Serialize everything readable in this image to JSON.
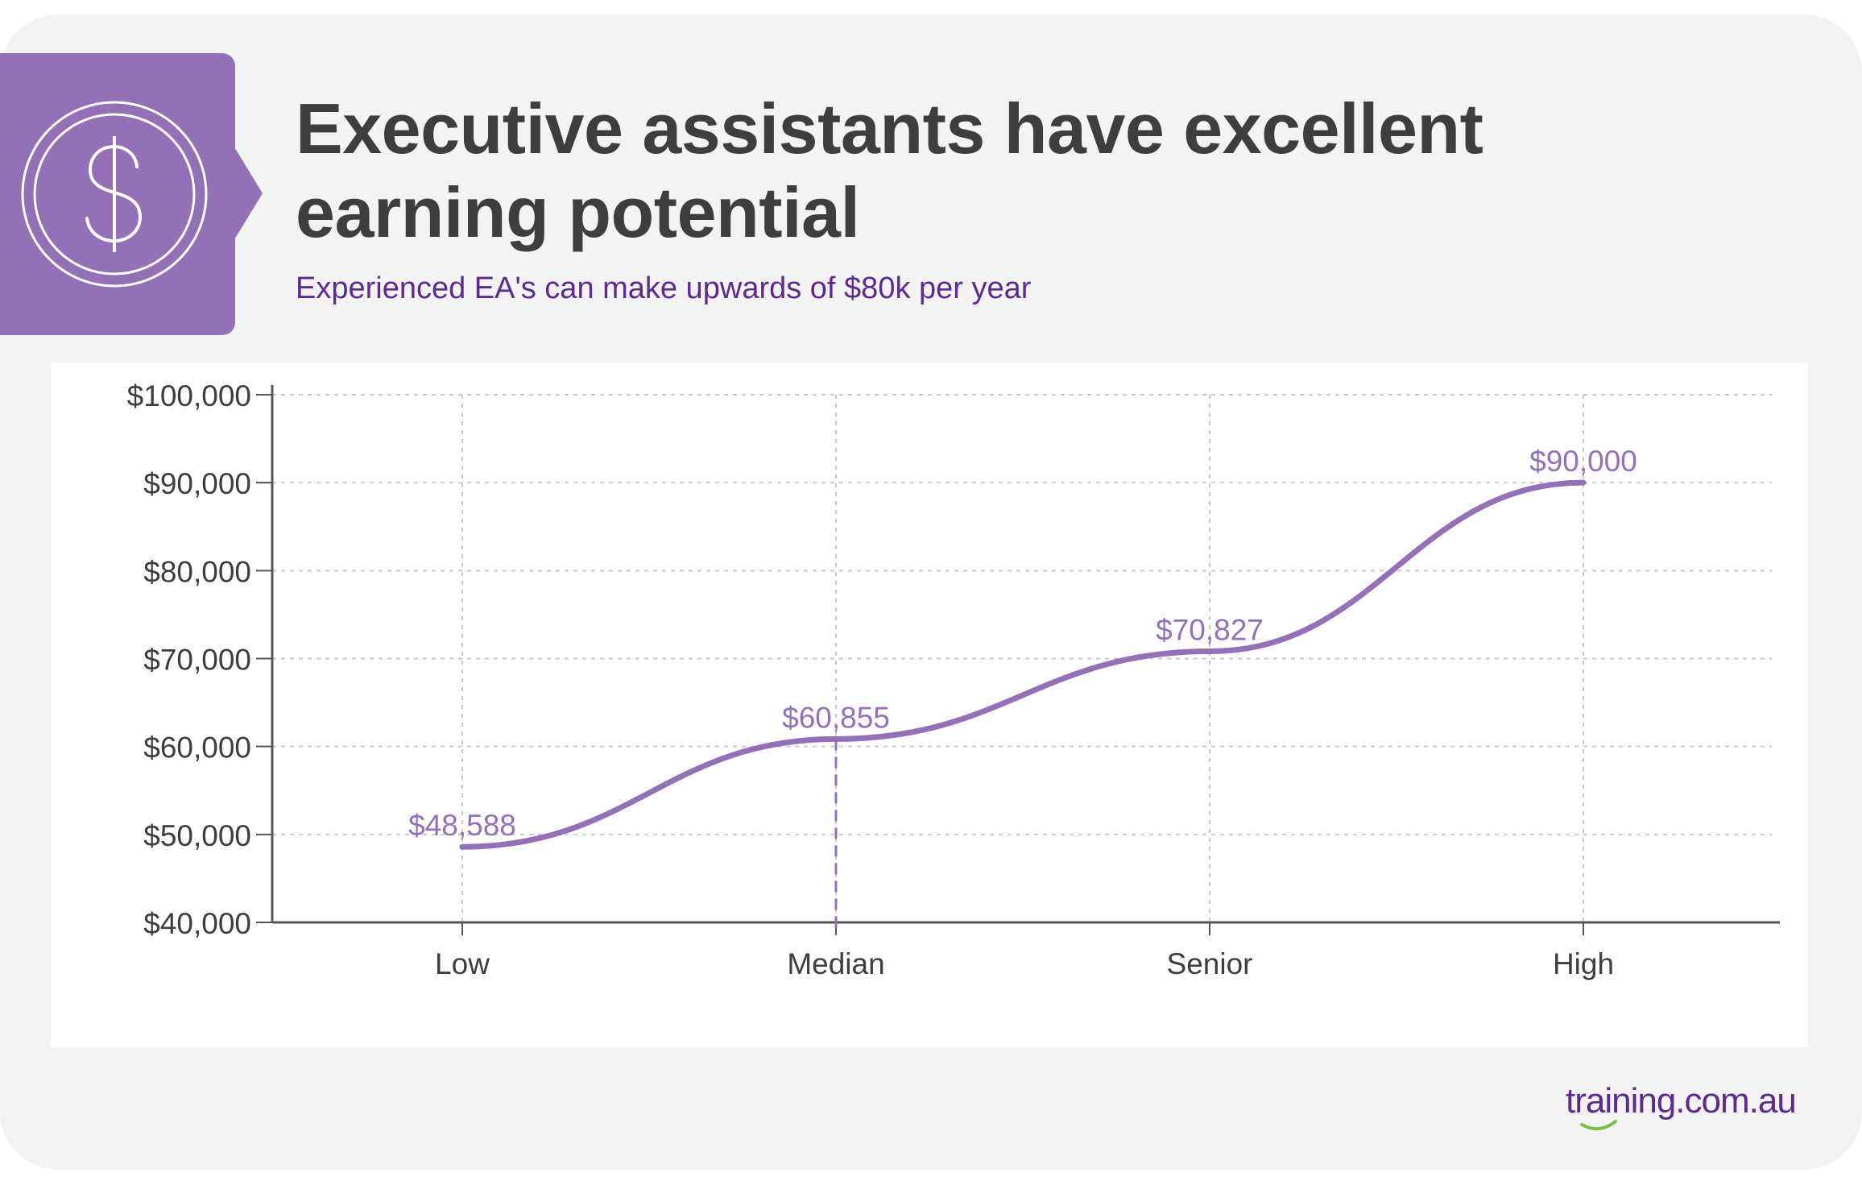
{
  "header": {
    "title": "Executive assistants have excellent earning potential",
    "subtitle": "Experienced EA's can make upwards of $80k per year",
    "icon": "dollar-coin-icon"
  },
  "brand": {
    "logo_text": "training.com.au",
    "accent": "#9470b6",
    "title_color": "#3e3e3e",
    "subtitle_color": "#5e2a8e",
    "background": "#f3f3f3"
  },
  "chart_data": {
    "type": "line",
    "title": "",
    "xlabel": "",
    "ylabel": "",
    "categories": [
      "Low",
      "Median",
      "Senior",
      "High"
    ],
    "series": [
      {
        "values": [
          48588,
          60855,
          70827,
          90000
        ],
        "color": "#9470b6"
      }
    ],
    "data_labels": [
      "$48,588",
      "$60,855",
      "$70,827",
      "$90,000"
    ],
    "ylim": [
      40000,
      100000
    ],
    "yticks": [
      40000,
      50000,
      60000,
      70000,
      80000,
      90000,
      100000
    ],
    "ytick_labels": [
      "$40,000",
      "$50,000",
      "$60,000",
      "$70,000",
      "$80,000",
      "$90,000",
      "$100,000"
    ],
    "highlight_category": "Median",
    "curve": "smooth",
    "grid": true,
    "legend": "none"
  }
}
